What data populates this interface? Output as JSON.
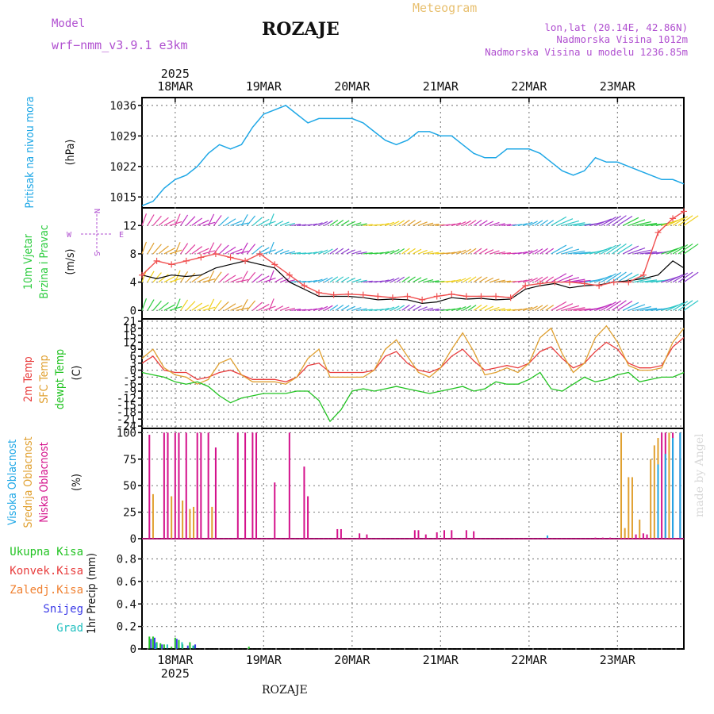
{
  "header": {
    "model_label": "Model",
    "model_name": "wrf−nmm_v3.9.1  e3km",
    "station": "ROZAJE",
    "meteogram": "Meteogram",
    "coords": "lon,lat (20.14E, 42.86N)",
    "altitude": "Nadmorska Visina 1012m",
    "model_altitude": "Nadmorska Visina u modelu 1236.85m",
    "footer": "ROZAJE",
    "credit": "made by Angel"
  },
  "colors": {
    "pressure": "#1ea7e6",
    "wind_title": "#2ecc40",
    "t2m": "#e83c3c",
    "sfc": "#e0a030",
    "dew": "#22c322",
    "high": "#1ea7e6",
    "mid": "#e0a030",
    "low": "#d4118b",
    "total": "#22c322",
    "conv": "#e83c3c",
    "frozen": "#f08030",
    "snow": "#3a3ae8",
    "graupel": "#22c0c0",
    "meta": "#b050d0",
    "compass": "#b050d0"
  },
  "chart_data": {
    "type": "meteogram",
    "x_unit": "hours from 2025-03-17 15UTC",
    "day_ticks": [
      {
        "label": "18MAR",
        "hour": 9
      },
      {
        "label": "19MAR",
        "hour": 33
      },
      {
        "label": "20MAR",
        "hour": 57
      },
      {
        "label": "21MAR",
        "hour": 81
      },
      {
        "label": "22MAR",
        "hour": 105
      },
      {
        "label": "23MAR",
        "hour": 129
      }
    ],
    "year_label": "2025",
    "x_range": [
      0,
      147
    ],
    "panels": {
      "pressure": {
        "ylabel": "Pritisak na nivou mora",
        "unit": "(hPa)",
        "yticks": [
          1015,
          1022,
          1029,
          1036
        ],
        "ylim": [
          1012.5,
          1037.8
        ],
        "series": [
          {
            "name": "MSLP",
            "x": [
              0,
              3,
              6,
              9,
              12,
              15,
              18,
              21,
              24,
              27,
              30,
              33,
              36,
              39,
              42,
              45,
              48,
              51,
              54,
              57,
              60,
              63,
              66,
              69,
              72,
              75,
              78,
              81,
              84,
              87,
              90,
              93,
              96,
              99,
              102,
              105,
              108,
              111,
              114,
              117,
              120,
              123,
              126,
              129,
              132,
              135,
              138,
              141,
              144,
              147
            ],
            "y": [
              1013,
              1014,
              1017,
              1019,
              1020,
              1022,
              1025,
              1027,
              1026,
              1027,
              1031,
              1034,
              1035,
              1036,
              1034,
              1032,
              1033,
              1033,
              1033,
              1033,
              1032,
              1030,
              1028,
              1027,
              1028,
              1030,
              1030,
              1029,
              1029,
              1027,
              1025,
              1024,
              1024,
              1026,
              1026,
              1026,
              1025,
              1023,
              1021,
              1020,
              1021,
              1024,
              1023,
              1023,
              1022,
              1021,
              1020,
              1019,
              1019,
              1018
            ]
          }
        ]
      },
      "wind": {
        "ylabel1": "10m Vjetar",
        "ylabel2": "Brzina i Pravac",
        "unit": "(m/s)",
        "compass": {
          "w": "W",
          "e": "E",
          "n": "N",
          "s": "S"
        },
        "yticks": [
          0,
          4,
          8,
          12
        ],
        "ylim": [
          -1.2,
          14.5
        ],
        "series": [
          {
            "name": "speed",
            "color": "black",
            "x": [
              0,
              4,
              8,
              12,
              16,
              20,
              24,
              28,
              32,
              36,
              40,
              44,
              48,
              52,
              56,
              60,
              64,
              68,
              72,
              76,
              80,
              84,
              88,
              92,
              96,
              100,
              104,
              108,
              112,
              116,
              120,
              124,
              128,
              132,
              136,
              140,
              144,
              147
            ],
            "y": [
              5,
              4.5,
              5,
              4.8,
              5,
              6,
              6.5,
              7,
              6.5,
              6,
              4,
              3,
              2,
              2,
              2,
              1.8,
              1.5,
              1.6,
              1.5,
              1,
              1.2,
              1.8,
              1.6,
              1.7,
              1.5,
              1.6,
              3,
              3.5,
              3.8,
              3.2,
              3.5,
              3.6,
              4,
              4.2,
              4.5,
              5,
              7,
              6
            ]
          },
          {
            "name": "gust",
            "color": "#f05050",
            "x": [
              0,
              4,
              8,
              12,
              16,
              20,
              24,
              28,
              32,
              36,
              40,
              44,
              48,
              52,
              56,
              60,
              64,
              68,
              72,
              76,
              80,
              84,
              88,
              92,
              96,
              100,
              104,
              108,
              112,
              116,
              120,
              124,
              128,
              132,
              136,
              140,
              144,
              147
            ],
            "y": [
              5,
              7,
              6.5,
              7,
              7.5,
              8,
              7.5,
              7,
              8,
              6.5,
              5,
              3.5,
              2.5,
              2.2,
              2.3,
              2.2,
              2,
              1.8,
              2,
              1.5,
              2,
              2.3,
              2,
              2,
              2,
              1.8,
              3.5,
              3.8,
              4,
              4,
              3.8,
              3.5,
              4,
              4,
              5,
              11,
              13,
              14
            ]
          }
        ],
        "barb_rows": [
          0,
          4,
          8,
          12
        ],
        "barb_colors": [
          "#2ecc40",
          "#f0d020",
          "#e0a030",
          "#e040a0",
          "#c030c0",
          "#30b0e0",
          "#30c8c8",
          "#9040d0"
        ]
      },
      "temperature": {
        "ylabels": [
          "2m Temp",
          "SFC Temp",
          "dewpt Temp"
        ],
        "unit": "(C)",
        "yticks": [
          -24,
          -21,
          -18,
          -15,
          -12,
          -9,
          -6,
          -3,
          0,
          3,
          6,
          9,
          12,
          15,
          18,
          21
        ],
        "ylim": [
          -25,
          22
        ],
        "series": [
          {
            "name": "2m Temp",
            "x": [
              0,
              3,
              6,
              9,
              12,
              15,
              18,
              21,
              24,
              27,
              30,
              33,
              36,
              39,
              42,
              45,
              48,
              51,
              54,
              57,
              60,
              63,
              66,
              69,
              72,
              75,
              78,
              81,
              84,
              87,
              90,
              93,
              96,
              99,
              102,
              105,
              108,
              111,
              114,
              117,
              120,
              123,
              126,
              129,
              132,
              135,
              138,
              141,
              144,
              147
            ],
            "y": [
              3,
              6,
              0,
              -1,
              -1,
              -4,
              -3,
              -1,
              0,
              -2,
              -4,
              -4,
              -4,
              -5,
              -3,
              2,
              3,
              -1,
              -1,
              -1,
              -1,
              0,
              6,
              8,
              3,
              0,
              -1,
              1,
              6,
              9,
              4,
              0,
              1,
              2,
              1,
              3,
              8,
              10,
              5,
              1,
              3,
              8,
              12,
              9,
              3,
              1,
              1,
              2,
              10,
              14
            ]
          },
          {
            "name": "SFC Temp",
            "x": [
              0,
              3,
              6,
              9,
              12,
              15,
              18,
              21,
              24,
              27,
              30,
              33,
              36,
              39,
              42,
              45,
              48,
              51,
              54,
              57,
              60,
              63,
              66,
              69,
              72,
              75,
              78,
              81,
              84,
              87,
              90,
              93,
              96,
              99,
              102,
              105,
              108,
              111,
              114,
              117,
              120,
              123,
              126,
              129,
              132,
              135,
              138,
              141,
              144,
              147
            ],
            "y": [
              5,
              9,
              1,
              -2,
              -3,
              -6,
              -4,
              3,
              5,
              -2,
              -5,
              -5,
              -5,
              -6,
              -3,
              5,
              9,
              -3,
              -3,
              -3,
              -3,
              0,
              9,
              13,
              6,
              -1,
              -3,
              1,
              9,
              16,
              8,
              -2,
              -1,
              1,
              -1,
              3,
              14,
              18,
              7,
              -1,
              3,
              14,
              19,
              12,
              2,
              0,
              0,
              1,
              12,
              18
            ]
          },
          {
            "name": "dewpt Temp",
            "x": [
              0,
              3,
              6,
              9,
              12,
              15,
              18,
              21,
              24,
              27,
              30,
              33,
              36,
              39,
              42,
              45,
              48,
              51,
              54,
              57,
              60,
              63,
              66,
              69,
              72,
              75,
              78,
              81,
              84,
              87,
              90,
              93,
              96,
              99,
              102,
              105,
              108,
              111,
              114,
              117,
              120,
              123,
              126,
              129,
              132,
              135,
              138,
              141,
              144,
              147
            ],
            "y": [
              -1,
              -2,
              -3,
              -5,
              -6,
              -5,
              -7,
              -11,
              -14,
              -12,
              -11,
              -10,
              -10,
              -10,
              -9,
              -9,
              -13,
              -22,
              -17,
              -9,
              -8,
              -9,
              -8,
              -7,
              -8,
              -9,
              -10,
              -9,
              -8,
              -7,
              -9,
              -8,
              -5,
              -6,
              -6,
              -4,
              -1,
              -8,
              -9,
              -6,
              -3,
              -5,
              -4,
              -2,
              -1,
              -5,
              -4,
              -3,
              -3,
              -1
            ]
          }
        ]
      },
      "clouds": {
        "ylabels": [
          "Visoka Oblacnost",
          "Srednja Oblacnost",
          "Niska Oblacnost"
        ],
        "unit": "(%)",
        "yticks": [
          0,
          25,
          50,
          75,
          100
        ],
        "ylim": [
          0,
          104
        ],
        "bars": [
          {
            "name": "Niska",
            "color": "#d4118b",
            "x": [
              2,
              6,
              7,
              9,
              10,
              12,
              15,
              16,
              18,
              20,
              26,
              28,
              30,
              31,
              36,
              40,
              44,
              45,
              53,
              54,
              59,
              61,
              74,
              75,
              77,
              80,
              82,
              84,
              88,
              90,
              123,
              125,
              127,
              134,
              136,
              137,
              141,
              142,
              144,
              146
            ],
            "values": [
              98,
              100,
              100,
              100,
              100,
              100,
              100,
              100,
              100,
              86,
              100,
              100,
              100,
              100,
              53,
              100,
              68,
              40,
              9,
              9,
              5,
              4,
              8,
              8,
              4,
              6,
              8,
              8,
              8,
              7,
              1,
              1,
              1,
              4,
              5,
              4,
              100,
              100,
              100,
              100
            ]
          },
          {
            "name": "Srednja",
            "color": "#e0a030",
            "x": [
              3,
              8,
              11,
              13,
              14,
              19,
              130,
              131,
              132,
              133,
              135,
              138,
              139,
              140,
              143
            ],
            "values": [
              42,
              40,
              36,
              28,
              30,
              30,
              100,
              10,
              58,
              58,
              18,
              75,
              88,
              95,
              100
            ]
          },
          {
            "name": "Visoka",
            "color": "#1ea7e6",
            "x": [
              110,
              140,
              142,
              144,
              146
            ],
            "values": [
              3,
              70,
              80,
              95,
              100
            ]
          }
        ]
      },
      "precip": {
        "ylabel": "1hr Precip (mm)",
        "legend": [
          "Ukupna Kisa",
          "Konvek.Kisa",
          "Zaledj.Kisa",
          "Snijeg",
          "Grad"
        ],
        "yticks": [
          0,
          0.2,
          0.4,
          0.6,
          0.8
        ],
        "ylim": [
          0,
          0.98
        ],
        "bars": [
          {
            "name": "Ukupna Kisa",
            "color": "#22c322",
            "x": [
              2,
              3,
              4,
              5,
              6,
              8,
              9,
              10,
              11,
              13,
              14,
              29
            ],
            "values": [
              0.11,
              0.11,
              0.06,
              0.05,
              0.04,
              0.02,
              0.1,
              0.08,
              0.04,
              0.06,
              0.03,
              0.02
            ]
          },
          {
            "name": "Snijeg",
            "color": "#3a3ae8",
            "x": [
              2,
              3,
              5,
              9,
              12,
              14
            ],
            "values": [
              0.09,
              0.1,
              0.04,
              0.09,
              0.03,
              0.04
            ]
          },
          {
            "name": "Grad",
            "color": "#22c0c0",
            "x": [
              3,
              6,
              10,
              13
            ],
            "values": [
              0.05,
              0.04,
              0.06,
              0.03
            ]
          }
        ]
      }
    }
  }
}
